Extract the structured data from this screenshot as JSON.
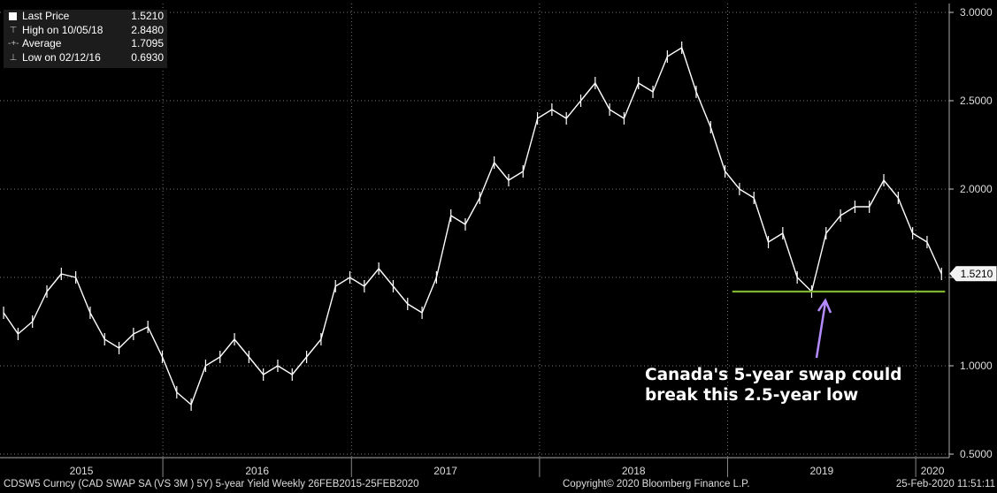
{
  "legend": {
    "items": [
      {
        "label": "Last Price",
        "value": "1.5210"
      },
      {
        "label": "High on 10/05/18",
        "value": "2.8480"
      },
      {
        "label": "Average",
        "value": "1.7095"
      },
      {
        "label": "Low on 02/12/16",
        "value": "0.6930"
      }
    ]
  },
  "annotation": {
    "line1": "Canada's 5-year swap could",
    "line2": "break this 2.5-year low",
    "arrow_color": "#b48cff",
    "support_line_color": "#7db32e"
  },
  "last_price_tag": "1.5210",
  "footer": {
    "left": "CDSW5 Curncy (CAD SWAP SA (VS 3M ) 5Y) 5-year Yield  Weekly 26FEB2015-25FEB2020",
    "center": "Copyright© 2020 Bloomberg Finance L.P.",
    "right": "25-Feb-2020  11:51:11"
  },
  "chart_data": {
    "type": "line",
    "series": [
      {
        "name": "Last Price",
        "x": [
          "2015-02-26",
          "2015-03-26",
          "2015-04-23",
          "2015-05-21",
          "2015-06-18",
          "2015-07-16",
          "2015-08-13",
          "2015-09-10",
          "2015-10-08",
          "2015-11-05",
          "2015-12-03",
          "2015-12-31",
          "2016-01-28",
          "2016-02-25",
          "2016-03-24",
          "2016-04-21",
          "2016-05-19",
          "2016-06-16",
          "2016-07-14",
          "2016-08-11",
          "2016-09-08",
          "2016-10-06",
          "2016-11-03",
          "2016-12-01",
          "2016-12-29",
          "2017-01-26",
          "2017-02-23",
          "2017-03-23",
          "2017-04-20",
          "2017-05-18",
          "2017-06-15",
          "2017-07-13",
          "2017-08-10",
          "2017-09-07",
          "2017-10-05",
          "2017-11-02",
          "2017-11-30",
          "2017-12-28",
          "2018-01-25",
          "2018-02-22",
          "2018-03-22",
          "2018-04-19",
          "2018-05-17",
          "2018-06-14",
          "2018-07-12",
          "2018-08-09",
          "2018-09-06",
          "2018-10-04",
          "2018-11-01",
          "2018-11-29",
          "2018-12-27",
          "2019-01-24",
          "2019-02-21",
          "2019-03-21",
          "2019-04-18",
          "2019-05-16",
          "2019-06-13",
          "2019-07-11",
          "2019-08-08",
          "2019-09-05",
          "2019-10-03",
          "2019-10-31",
          "2019-11-28",
          "2019-12-26",
          "2020-01-23",
          "2020-02-20"
        ],
        "values": [
          1.3,
          1.18,
          1.25,
          1.42,
          1.52,
          1.5,
          1.3,
          1.15,
          1.1,
          1.18,
          1.22,
          1.05,
          0.85,
          0.78,
          1.0,
          1.05,
          1.15,
          1.05,
          0.95,
          1.0,
          0.95,
          1.05,
          1.15,
          1.45,
          1.5,
          1.45,
          1.55,
          1.45,
          1.35,
          1.3,
          1.5,
          1.85,
          1.8,
          1.95,
          2.15,
          2.05,
          2.1,
          2.4,
          2.45,
          2.4,
          2.5,
          2.6,
          2.45,
          2.4,
          2.6,
          2.55,
          2.75,
          2.8,
          2.55,
          2.35,
          2.1,
          2.0,
          1.95,
          1.7,
          1.75,
          1.5,
          1.42,
          1.75,
          1.85,
          1.9,
          1.9,
          2.05,
          1.95,
          1.75,
          1.7,
          1.52
        ]
      },
      {
        "name": "",
        "x": [
          "2019-01-10",
          "2020-02-27"
        ],
        "values": [
          1.42,
          1.42
        ]
      }
    ],
    "title": "",
    "xlabel": "",
    "ylabel": "",
    "x_tick_labels": [
      "2015",
      "2016",
      "2017",
      "2018",
      "2019",
      "2020"
    ],
    "y_tick_labels": [
      "0.5000",
      "1.0000",
      "1.5000",
      "2.0000",
      "2.5000",
      "3.0000"
    ],
    "ylim": [
      0.48,
      3.05
    ],
    "xlim": [
      "2015-02-19",
      "2020-03-06"
    ],
    "grid": true,
    "legend_position": "top-left",
    "y_axis_side": "right"
  }
}
